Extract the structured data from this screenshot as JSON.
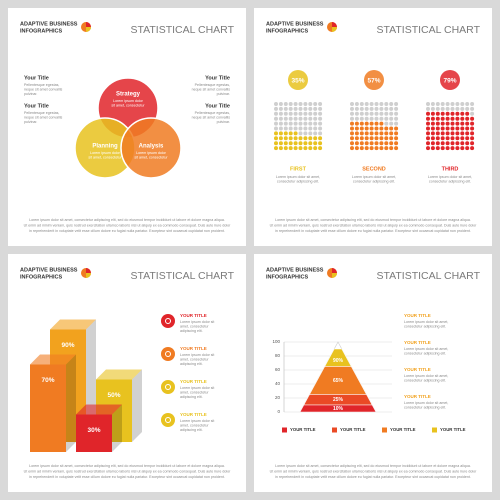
{
  "panels": [
    {
      "header": {
        "brand": "ADAPTIVE BUSINESS",
        "brand2": "INFOGRAPHICS",
        "title": "STATISTICAL CHART"
      },
      "left": [
        {
          "title": "Your Title",
          "desc": [
            "Pellentesque egestas,",
            "neque sit amet convallis",
            "pulvinar."
          ]
        },
        {
          "title": "Your Title",
          "desc": [
            "Pellentesque egestas,",
            "neque sit amet convallis",
            "pulvinar."
          ]
        }
      ],
      "right": [
        {
          "title": "Your Title",
          "desc": [
            "Pellentesque egestas,",
            "neque sit amet convallis",
            "pulvinar."
          ]
        },
        {
          "title": "Your Title",
          "desc": [
            "Pellentesque egestas,",
            "neque sit amet convallis",
            "pulvinar."
          ]
        }
      ],
      "circles": [
        {
          "title": "Strategy",
          "desc": [
            "Lorem ipsum dolor",
            "sit amet, consectetur"
          ]
        },
        {
          "title": "Planning",
          "desc": [
            "Lorem ipsum dolor",
            "sit amet, consectetur"
          ]
        },
        {
          "title": "Analysis",
          "desc": [
            "Lorem ipsum dolor",
            "sit amet, consectetur"
          ]
        }
      ],
      "footer": [
        "Lorem ipsum dolor sit amet, consectetur adipiscing elit, sed do eiusmod tempor incididunt ut labore et dolore magna aliqua.",
        "Ut enim ad minim veniam, quis nostrud exercitation ullamco laboris nisi ut aliquip ex ea commodo consequat. Duis aute irure dolor",
        "in reprehenderit in voluptate velit esse cillum dolore eu fugiat nulla pariatur. Excepteur sint occaecat cupidatat non proident."
      ]
    },
    {
      "header": {
        "brand": "ADAPTIVE BUSINESS",
        "brand2": "INFOGRAPHICS",
        "title": "STATISTICAL CHART"
      },
      "footer": [
        "Lorem ipsum dolor sit amet, consectetur adipiscing elit, sed do eiusmod tempor incididunt ut labore et dolore magna aliqua.",
        "Ut enim ad minim veniam, quis nostrud exercitation ullamco laboris nisi ut aliquip ex ea commodo consequat. Duis aute irure dolor",
        "in reprehenderit in voluptate velit esse cillum dolore eu fugiat nulla pariatur. Excepteur sint occaecat cupidatat non proident."
      ]
    },
    {
      "header": {
        "brand": "ADAPTIVE BUSINESS",
        "brand2": "INFOGRAPHICS",
        "title": "STATISTICAL CHART"
      },
      "items": [
        {
          "title": "YOUR TITLE",
          "desc": [
            "Lorem ipsum dolor sit",
            "amet, consectetur",
            "adipiscing elit."
          ]
        },
        {
          "title": "YOUR TITLE",
          "desc": [
            "Lorem ipsum dolor sit",
            "amet, consectetur",
            "adipiscing elit."
          ]
        },
        {
          "title": "YOUR TITLE",
          "desc": [
            "Lorem ipsum dolor sit",
            "amet, consectetur",
            "adipiscing elit."
          ]
        },
        {
          "title": "YOUR TITLE",
          "desc": [
            "Lorem ipsum dolor sit",
            "amet, consectetur",
            "adipiscing elit."
          ]
        }
      ],
      "footer": [
        "Lorem ipsum dolor sit amet, consectetur adipiscing elit, sed do eiusmod tempor incididunt ut labore et dolore magna aliqua.",
        "Ut enim ad minim veniam, quis nostrud exercitation ullamco laboris nisi ut aliquip ex ea commodo consequat. Duis aute irure dolor",
        "in reprehenderit in voluptate velit esse cillum dolore eu fugiat nulla pariatur. Excepteur sint occaecat cupidatat non proident."
      ]
    },
    {
      "header": {
        "brand": "ADAPTIVE BUSINESS",
        "brand2": "INFOGRAPHICS",
        "title": "STATISTICAL CHART"
      },
      "items": [
        {
          "title": "YOUR TITLE",
          "desc": [
            "Lorem ipsum dolor sit amet,",
            "consectetur adipiscing elit."
          ]
        },
        {
          "title": "YOUR TITLE",
          "desc": [
            "Lorem ipsum dolor sit amet,",
            "consectetur adipiscing elit."
          ]
        },
        {
          "title": "YOUR TITLE",
          "desc": [
            "Lorem ipsum dolor sit amet,",
            "consectetur adipiscing elit."
          ]
        },
        {
          "title": "YOUR TITLE",
          "desc": [
            "Lorem ipsum dolor sit amet,",
            "consectetur adipiscing elit."
          ]
        }
      ],
      "footer": [
        "Lorem ipsum dolor sit amet, consectetur adipiscing elit, sed do eiusmod tempor incididunt ut labore et dolore magna aliqua.",
        "Ut enim ad minim veniam, quis nostrud exercitation ullamco laboris nisi ut aliquip ex ea commodo consequat. Duis aute irure dolor",
        "in reprehenderit in voluptate velit esse cillum dolore eu fugiat nulla pariatur. Excepteur sint occaecat cupidatat non proident."
      ]
    }
  ],
  "chart_data": [
    {
      "type": "waffle",
      "categories": [
        "FIRST",
        "SECOND",
        "THIRD"
      ],
      "values": [
        35,
        57,
        79
      ],
      "value_labels": [
        "35%",
        "57%",
        "79%"
      ],
      "colors": [
        "#e8c21f",
        "#f07b22",
        "#e0252a"
      ],
      "descriptions": [
        [
          "Lorem ipsum dolor sit amet,",
          "consectetur adipiscing elit."
        ],
        [
          "Lorem ipsum dolor sit amet,",
          "consectetur adipiscing elit."
        ],
        [
          "Lorem ipsum dolor sit amet,",
          "consectetur adipiscing elit."
        ]
      ]
    },
    {
      "type": "bar",
      "values": [
        90,
        70,
        50,
        30
      ],
      "value_labels": [
        "90%",
        "70%",
        "50%",
        "30%"
      ],
      "colors": [
        "#f2a21e",
        "#f07b22",
        "#e8c21f",
        "#e0252a"
      ]
    },
    {
      "type": "pyramid",
      "values": [
        90,
        65,
        25,
        10
      ],
      "value_labels": [
        "90%",
        "65%",
        "25%",
        "10%"
      ],
      "colors": [
        "#e8c21f",
        "#f07b22",
        "#ea4a25",
        "#e0252a"
      ],
      "ylim": [
        0,
        100
      ],
      "yticks": [
        0,
        20,
        40,
        60,
        80,
        100
      ],
      "grid": true,
      "legend": [
        {
          "name": "YOUR TITLE",
          "color": "#e0252a"
        },
        {
          "name": "YOUR TITLE",
          "color": "#ea4a25"
        },
        {
          "name": "YOUR TITLE",
          "color": "#f07b22"
        },
        {
          "name": "YOUR TITLE",
          "color": "#e8c21f"
        }
      ]
    }
  ]
}
